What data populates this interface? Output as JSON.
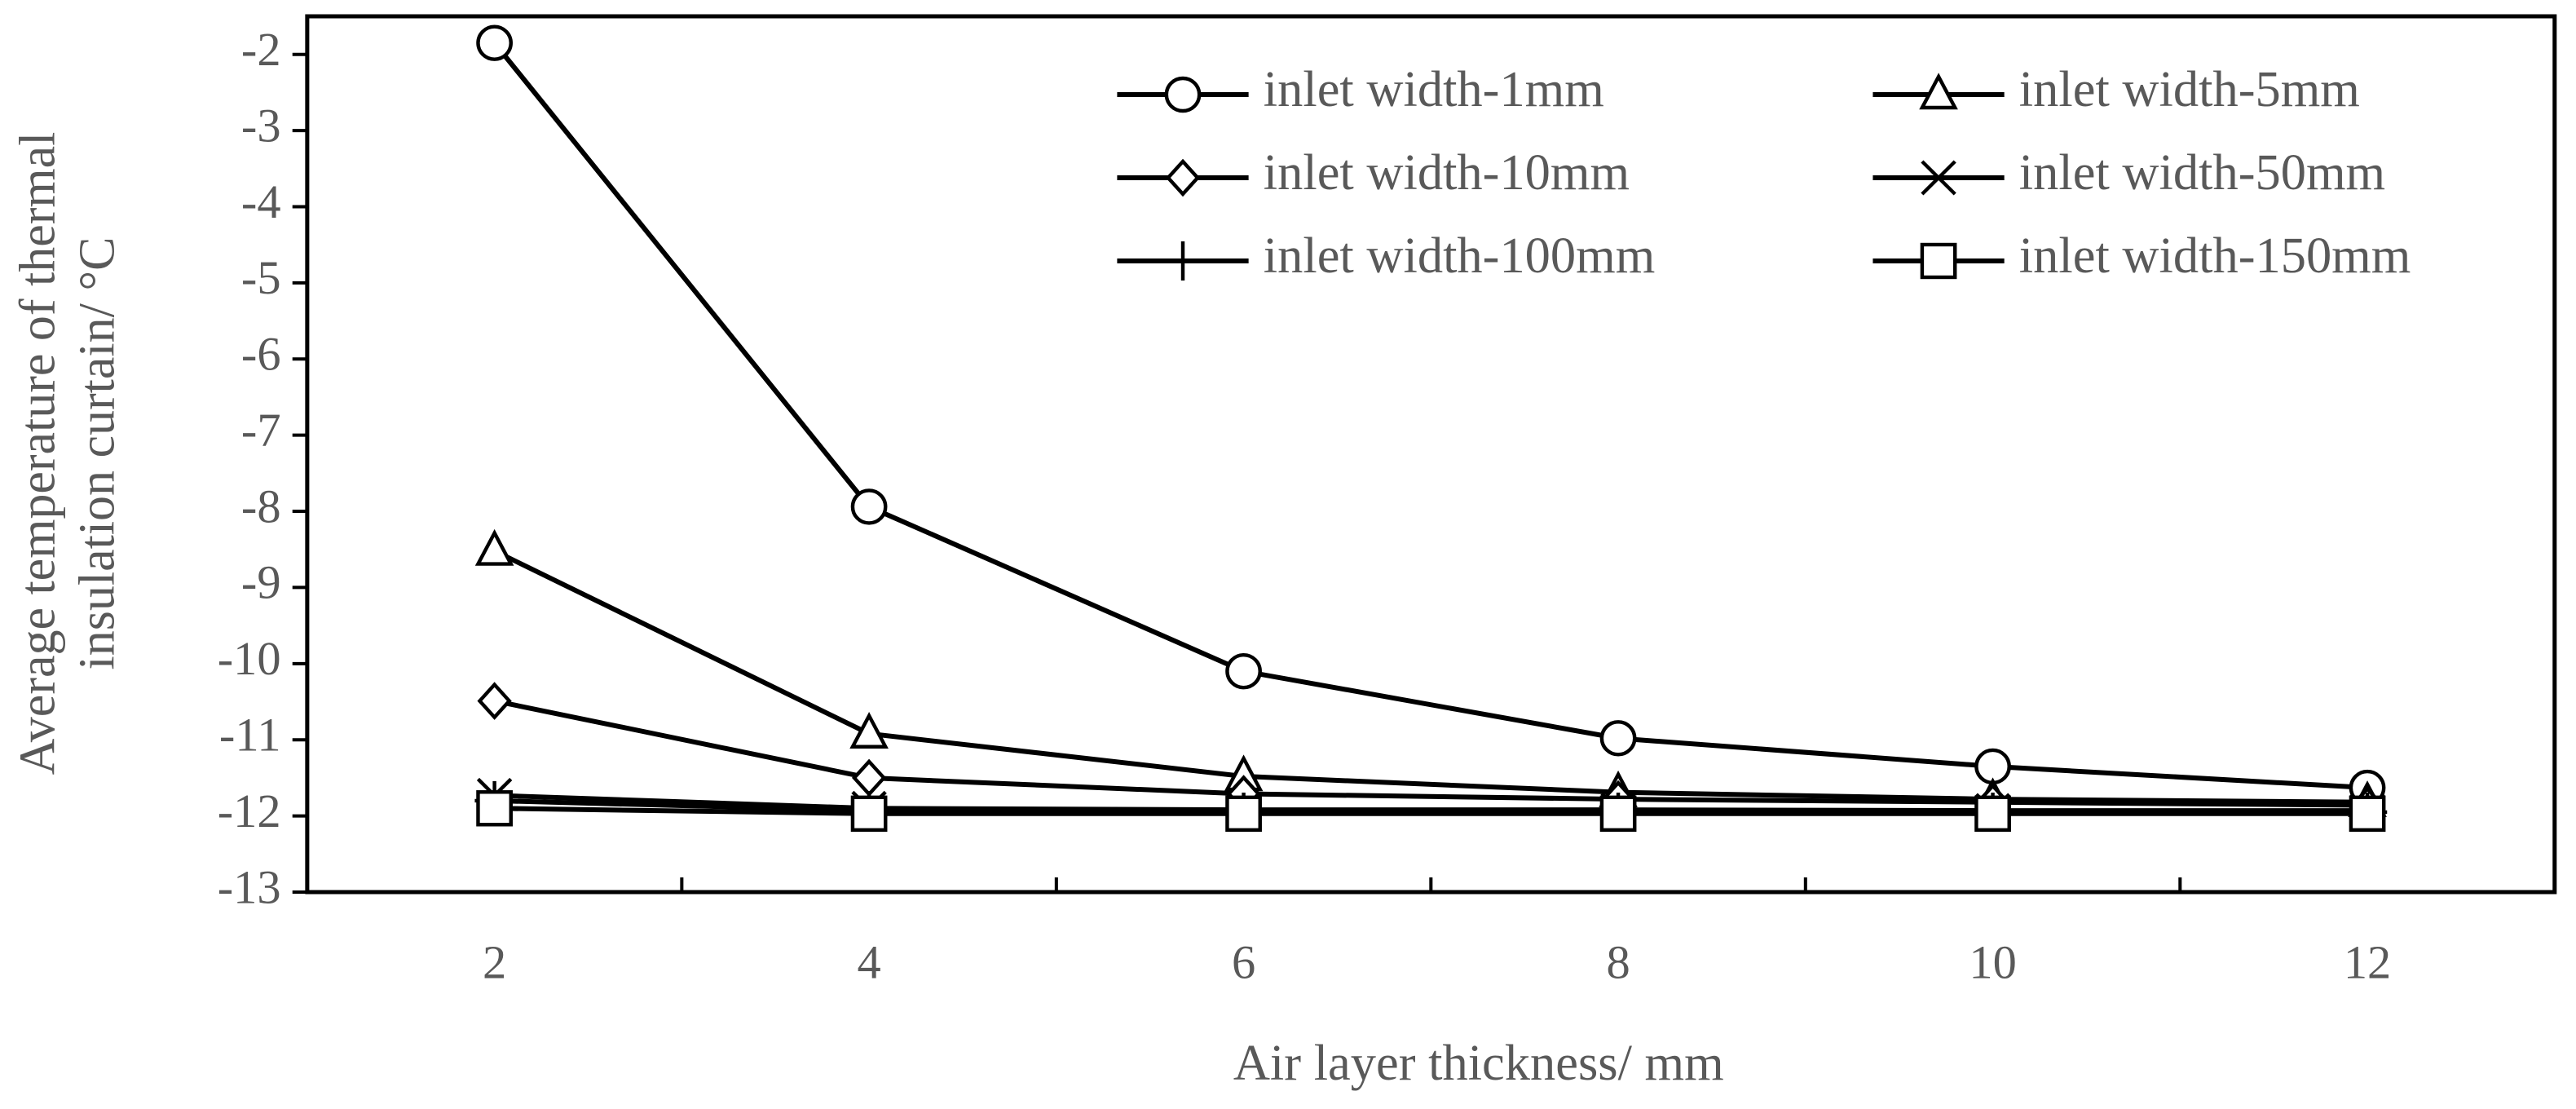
{
  "chart_data": {
    "type": "line",
    "x_label": "Air layer thickness/ mm",
    "y_label": [
      "Average temperature of thermal",
      "insulation curtain/ °C"
    ],
    "categories": [
      "2",
      "4",
      "6",
      "8",
      "10",
      "12"
    ],
    "ylim": [
      -13,
      -1.5
    ],
    "yticks": [
      -13,
      -12,
      -11,
      -10,
      -9,
      -8,
      -7,
      -6,
      -5,
      -4,
      -3,
      -2
    ],
    "series": [
      {
        "name": "inlet width-1mm",
        "color": "#000000",
        "marker": "circle",
        "values": [
          -1.85,
          -7.94,
          -10.1,
          -10.98,
          -11.35,
          -11.63
        ]
      },
      {
        "name": "inlet width-5mm",
        "color": "#000000",
        "marker": "triangle",
        "values": [
          -8.52,
          -10.92,
          -11.48,
          -11.69,
          -11.78,
          -11.82
        ]
      },
      {
        "name": "inlet width-10mm",
        "color": "#000000",
        "marker": "diamond",
        "values": [
          -10.49,
          -11.5,
          -11.71,
          -11.78,
          -11.82,
          -11.86
        ]
      },
      {
        "name": "inlet width-50mm",
        "color": "#000000",
        "marker": "x",
        "values": [
          -11.73,
          -11.9,
          -11.92,
          -11.92,
          -11.93,
          -11.93
        ]
      },
      {
        "name": "inlet width-100mm",
        "color": "#000000",
        "marker": "plus",
        "values": [
          -11.8,
          -11.93,
          -11.95,
          -11.95,
          -11.95,
          -11.95
        ]
      },
      {
        "name": "inlet width-150mm",
        "color": "#000000",
        "marker": "square",
        "values": [
          -11.9,
          -11.97,
          -11.97,
          -11.97,
          -11.97,
          -11.97
        ]
      }
    ]
  }
}
